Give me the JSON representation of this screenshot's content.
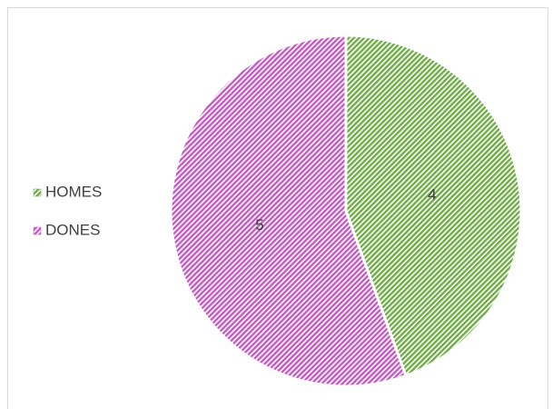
{
  "chart_data": {
    "type": "pie",
    "categories": [
      "HOMES",
      "DONES"
    ],
    "values": [
      4,
      5
    ],
    "colors": [
      "#70ad47",
      "#c45bc4"
    ],
    "legend": "left"
  }
}
